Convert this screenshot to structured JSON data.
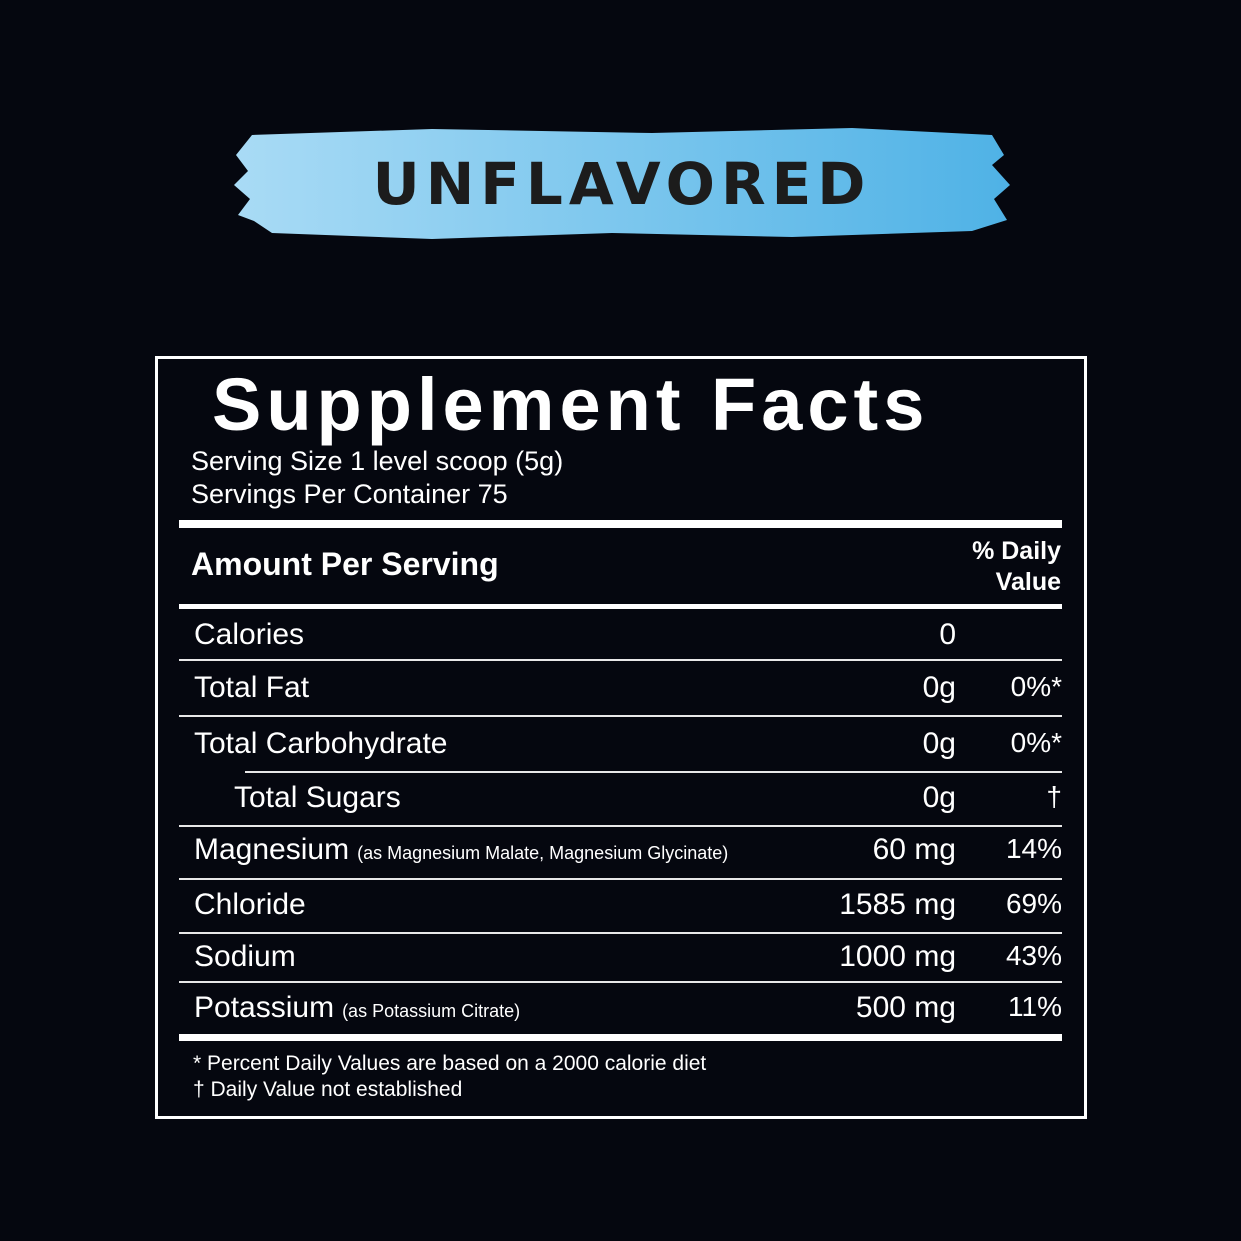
{
  "flavor": {
    "label": "UNFLAVORED",
    "brush_colors": [
      "#a9dbf5",
      "#4fb2e6"
    ]
  },
  "facts": {
    "title": "Supplement Facts",
    "serving_size": "Serving Size 1 level scoop (5g)",
    "servings_per_container": "Servings Per Container 75",
    "amount_per_serving": "Amount Per Serving",
    "daily_value_header_1": "% Daily",
    "daily_value_header_2": "Value",
    "rows": [
      {
        "name": "Calories",
        "note": "",
        "amount": "0",
        "dv": ""
      },
      {
        "name": "Total Fat",
        "note": "",
        "amount": "0g",
        "dv": "0%*"
      },
      {
        "name": "Total Carbohydrate",
        "note": "",
        "amount": "0g",
        "dv": "0%*"
      },
      {
        "name": "Total Sugars",
        "note": "",
        "amount": "0g",
        "dv": "†"
      },
      {
        "name": "Magnesium",
        "note": "(as Magnesium Malate, Magnesium Glycinate)",
        "amount": "60 mg",
        "dv": "14%"
      },
      {
        "name": "Chloride",
        "note": "",
        "amount": "1585 mg",
        "dv": "69%"
      },
      {
        "name": "Sodium",
        "note": "",
        "amount": "1000 mg",
        "dv": "43%"
      },
      {
        "name": "Potassium",
        "note": "(as Potassium Citrate)",
        "amount": "500 mg",
        "dv": "11%"
      }
    ],
    "footnote_1": "* Percent Daily Values are based on a 2000 calorie diet",
    "footnote_2": "† Daily Value not established"
  }
}
